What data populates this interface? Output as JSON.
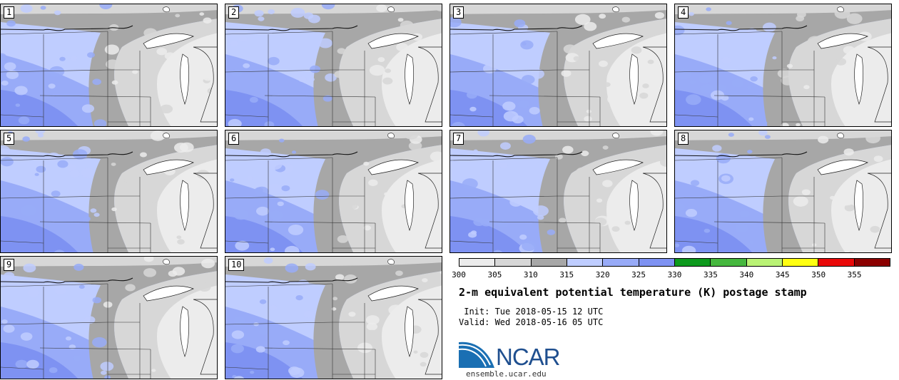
{
  "panels": [
    "1",
    "2",
    "3",
    "4",
    "5",
    "6",
    "7",
    "8",
    "9",
    "10"
  ],
  "colorbar": {
    "colors": [
      "#ececec",
      "#d7d7d7",
      "#a7a7a7",
      "#bfcdff",
      "#98abf8",
      "#7e92f2",
      "#0d9a1d",
      "#45b73e",
      "#b9f274",
      "#ffff11",
      "#e90808",
      "#8b0000"
    ],
    "ticks": [
      "300",
      "305",
      "310",
      "315",
      "320",
      "325",
      "330",
      "335",
      "340",
      "345",
      "350",
      "355"
    ]
  },
  "title": "2-m equivalent potential temperature (K) postage stamp",
  "init": " Init: Tue 2018-05-15 12 UTC",
  "valid": "Valid: Wed 2018-05-16 05 UTC",
  "logo": {
    "name": "NCAR",
    "url": "ensemble.ucar.edu"
  }
}
